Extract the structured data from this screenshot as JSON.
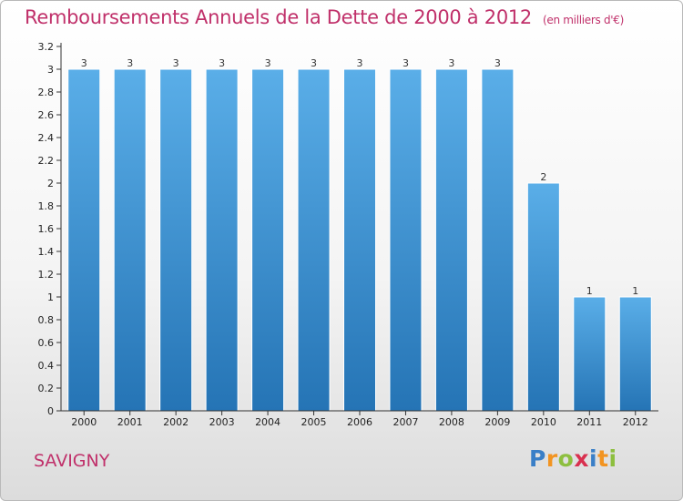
{
  "header": {
    "title": "Remboursements Annuels de la Dette de 2000 à 2012",
    "unit": "(en milliers d'€)"
  },
  "footer": {
    "city": "SAVIGNY",
    "logo_letters": [
      {
        "char": "P",
        "color": "#3a7fc7"
      },
      {
        "char": "r",
        "color": "#f29421"
      },
      {
        "char": "o",
        "color": "#8dbf3f"
      },
      {
        "char": "x",
        "color": "#d9304f"
      },
      {
        "char": "i",
        "color": "#3a7fc7"
      },
      {
        "char": "t",
        "color": "#f29421"
      },
      {
        "char": "i",
        "color": "#8dbf3f"
      }
    ]
  },
  "colors": {
    "title": "#c0306a",
    "bar_light": "#5aaee8",
    "bar_dark": "#2574b5"
  },
  "chart_data": {
    "type": "bar",
    "title": "Remboursements Annuels de la Dette de 2000 à 2012",
    "subtitle": "(en milliers d'€)",
    "xlabel": "",
    "ylabel": "",
    "categories": [
      "2000",
      "2001",
      "2002",
      "2003",
      "2004",
      "2005",
      "2006",
      "2007",
      "2008",
      "2009",
      "2010",
      "2011",
      "2012"
    ],
    "values": [
      3,
      3,
      3,
      3,
      3,
      3,
      3,
      3,
      3,
      3,
      2,
      1,
      1
    ],
    "data_labels": [
      "3",
      "3",
      "3",
      "3",
      "3",
      "3",
      "3",
      "3",
      "3",
      "3",
      "2",
      "1",
      "1"
    ],
    "ylim": [
      0,
      3.2
    ],
    "y_ticks": [
      {
        "value": 0,
        "label": "0"
      },
      {
        "value": 0.2,
        "label": "0.2"
      },
      {
        "value": 0.4,
        "label": "0.4"
      },
      {
        "value": 0.6,
        "label": "0.6"
      },
      {
        "value": 0.8,
        "label": "0.8"
      },
      {
        "value": 1,
        "label": "1"
      },
      {
        "value": 1.2,
        "label": "1.2"
      },
      {
        "value": 1.4,
        "label": "1.4"
      },
      {
        "value": 1.6,
        "label": "1.6"
      },
      {
        "value": 1.8,
        "label": "1.8"
      },
      {
        "value": 2,
        "label": "2"
      },
      {
        "value": 2.2,
        "label": "2.2"
      },
      {
        "value": 2.4,
        "label": "2.4"
      },
      {
        "value": 2.6,
        "label": "2.6"
      },
      {
        "value": 2.8,
        "label": "2.8"
      },
      {
        "value": 3,
        "label": "3"
      },
      {
        "value": 3.2,
        "label": "3.2"
      }
    ],
    "grid": false,
    "legend": "none"
  }
}
